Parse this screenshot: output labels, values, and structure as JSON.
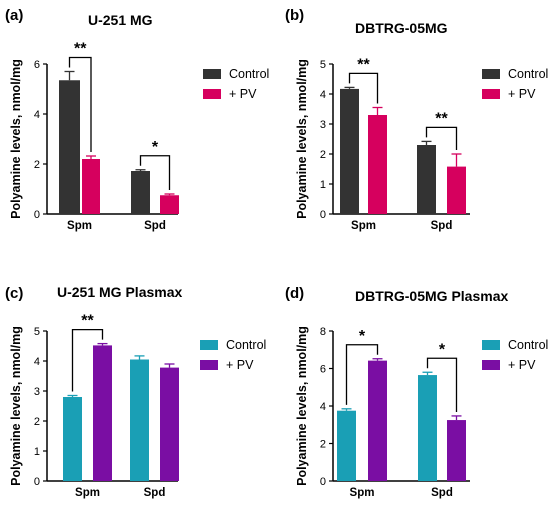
{
  "chart_data": [
    {
      "panel": "(a)",
      "type": "bar",
      "title": "U-251 MG",
      "ylabel": "Polyamine levels, nmol/mg",
      "categories": [
        "Spm",
        "Spd"
      ],
      "ylim": [
        0,
        6
      ],
      "yticks": [
        0,
        2,
        4,
        6
      ],
      "legend_position": "right",
      "series": [
        {
          "name": "Control",
          "color": "#333333",
          "values": [
            5.35,
            1.72
          ],
          "errors": [
            0.35,
            0.05
          ]
        },
        {
          "name": "+ PV",
          "color": "#d6005e",
          "values": [
            2.2,
            0.75
          ],
          "errors": [
            0.12,
            0.05
          ]
        }
      ],
      "significance": [
        "**",
        "*"
      ]
    },
    {
      "panel": "(b)",
      "type": "bar",
      "title": "DBTRG-05MG",
      "ylabel": "Polyamine levels, nmol/mg",
      "categories": [
        "Spm",
        "Spd"
      ],
      "ylim": [
        0,
        5
      ],
      "yticks": [
        0,
        1,
        2,
        3,
        4,
        5
      ],
      "legend_position": "right",
      "series": [
        {
          "name": "Control",
          "color": "#333333",
          "values": [
            4.17,
            2.3
          ],
          "errors": [
            0.05,
            0.12
          ]
        },
        {
          "name": "+ PV",
          "color": "#d6005e",
          "values": [
            3.3,
            1.58
          ],
          "errors": [
            0.25,
            0.42
          ]
        }
      ],
      "significance": [
        "**",
        "**"
      ]
    },
    {
      "panel": "(c)",
      "type": "bar",
      "title": "U-251 MG Plasmax",
      "ylabel": "Polyamine levels, nmol/mg",
      "categories": [
        "Spm",
        "Spd"
      ],
      "ylim": [
        0,
        5
      ],
      "yticks": [
        0,
        1,
        2,
        3,
        4,
        5
      ],
      "legend_position": "right",
      "series": [
        {
          "name": "Control",
          "color": "#1a9fb5",
          "values": [
            2.8,
            4.05
          ],
          "errors": [
            0.05,
            0.12
          ]
        },
        {
          "name": "+ PV",
          "color": "#7a0ea3",
          "values": [
            4.52,
            3.78
          ],
          "errors": [
            0.06,
            0.12
          ]
        }
      ],
      "significance": [
        "**",
        ""
      ]
    },
    {
      "panel": "(d)",
      "type": "bar",
      "title": "DBTRG-05MG Plasmax",
      "ylabel": "Polyamine levels, nmol/mg",
      "categories": [
        "Spm",
        "Spd"
      ],
      "ylim": [
        0,
        8
      ],
      "yticks": [
        0,
        2,
        4,
        6,
        8
      ],
      "legend_position": "right",
      "series": [
        {
          "name": "Control",
          "color": "#1a9fb5",
          "values": [
            3.75,
            5.65
          ],
          "errors": [
            0.1,
            0.15
          ]
        },
        {
          "name": "+ PV",
          "color": "#7a0ea3",
          "values": [
            6.42,
            3.25
          ],
          "errors": [
            0.1,
            0.22
          ]
        }
      ],
      "significance": [
        "*",
        "*"
      ]
    }
  ]
}
